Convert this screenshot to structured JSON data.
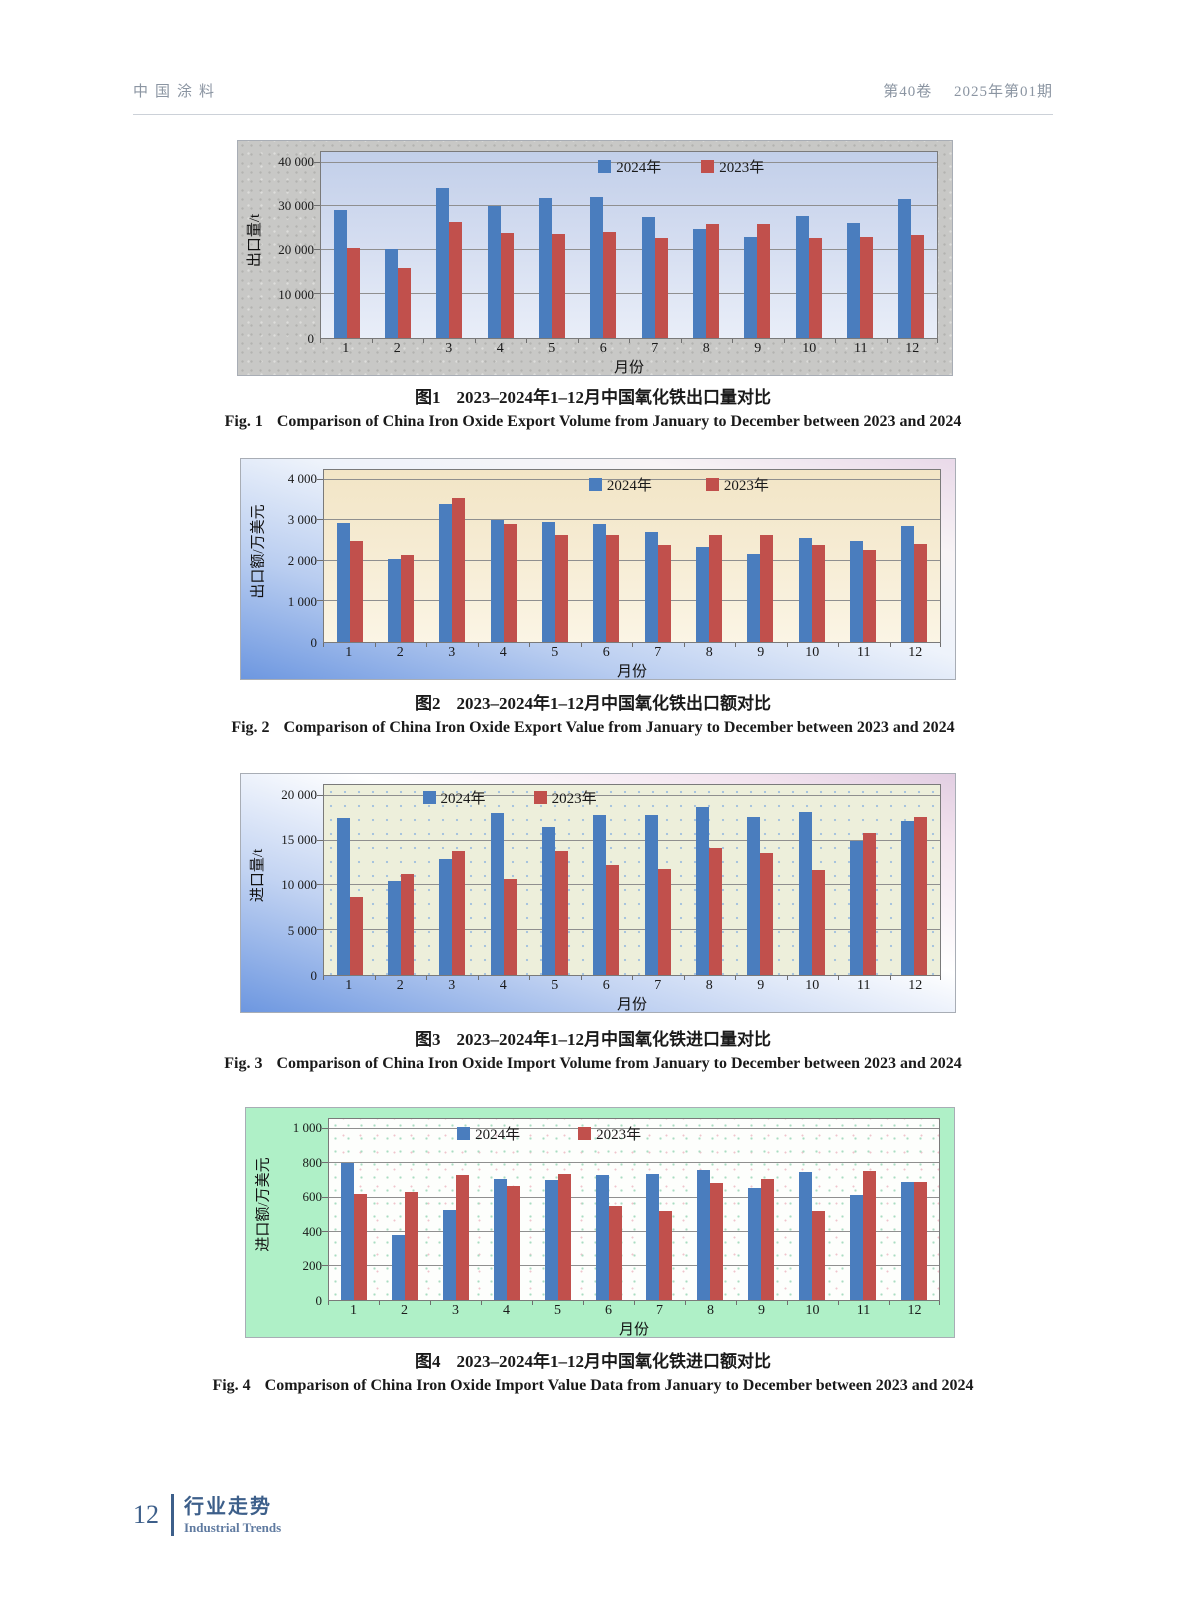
{
  "header": {
    "journal_name": "中国涂料",
    "volume": "第40卷",
    "issue": "2025年第01期"
  },
  "figures": [
    {
      "caption_cn_label": "图1",
      "caption_cn": "2023–2024年1–12月中国氧化铁出口量对比",
      "caption_en_label": "Fig. 1",
      "caption_en": "Comparison of China Iron Oxide Export Volume from January to December between 2023 and 2024"
    },
    {
      "caption_cn_label": "图2",
      "caption_cn": "2023–2024年1–12月中国氧化铁出口额对比",
      "caption_en_label": "Fig. 2",
      "caption_en": "Comparison of China Iron Oxide Export Value from January to December between 2023 and 2024"
    },
    {
      "caption_cn_label": "图3",
      "caption_cn": "2023–2024年1–12月中国氧化铁进口量对比",
      "caption_en_label": "Fig. 3",
      "caption_en": "Comparison of China Iron Oxide Import Volume from January to December between 2023 and 2024"
    },
    {
      "caption_cn_label": "图4",
      "caption_cn": "2023–2024年1–12月中国氧化铁进口额对比",
      "caption_en_label": "Fig. 4",
      "caption_en": "Comparison of China Iron Oxide Import Value Data from January to December between 2023 and 2024"
    }
  ],
  "chart_data": [
    {
      "type": "bar",
      "title": "",
      "categories": [
        1,
        2,
        3,
        4,
        5,
        6,
        7,
        8,
        9,
        10,
        11,
        12
      ],
      "series": [
        {
          "name": "2024年",
          "color": "#4a7dbe",
          "values": [
            29100,
            20200,
            34200,
            30000,
            32000,
            32200,
            27500,
            24800,
            23000,
            27800,
            26200,
            31800
          ]
        },
        {
          "name": "2023年",
          "color": "#c1504c",
          "values": [
            20500,
            16000,
            26400,
            24000,
            23800,
            24200,
            22700,
            26000,
            26000,
            22700,
            23000,
            23500
          ]
        }
      ],
      "xlabel": "月份",
      "ylabel": "出口量/t",
      "ylim": [
        0,
        40000
      ],
      "yticks": [
        {
          "v": 0,
          "label": "0"
        },
        {
          "v": 10000,
          "label": "10 000"
        },
        {
          "v": 20000,
          "label": "20 000"
        },
        {
          "v": 30000,
          "label": "30 000"
        },
        {
          "v": 40000,
          "label": "40 000"
        }
      ],
      "grid": true,
      "legend_position": "top-inside"
    },
    {
      "type": "bar",
      "title": "",
      "categories": [
        1,
        2,
        3,
        4,
        5,
        6,
        7,
        8,
        9,
        10,
        11,
        12
      ],
      "series": [
        {
          "name": "2024年",
          "color": "#4a7dbe",
          "values": [
            2940,
            2050,
            3390,
            3000,
            2960,
            2900,
            2720,
            2330,
            2180,
            2570,
            2480,
            2860
          ]
        },
        {
          "name": "2023年",
          "color": "#c1504c",
          "values": [
            2480,
            2140,
            3550,
            2910,
            2650,
            2630,
            2380,
            2640,
            2630,
            2380,
            2260,
            2420
          ]
        }
      ],
      "xlabel": "月份",
      "ylabel": "出口额/万美元",
      "ylim": [
        0,
        4000
      ],
      "yticks": [
        {
          "v": 0,
          "label": "0"
        },
        {
          "v": 1000,
          "label": "1 000"
        },
        {
          "v": 2000,
          "label": "2 000"
        },
        {
          "v": 3000,
          "label": "3 000"
        },
        {
          "v": 4000,
          "label": "4 000"
        }
      ],
      "grid": true,
      "legend_position": "top-inside"
    },
    {
      "type": "bar",
      "title": "",
      "categories": [
        1,
        2,
        3,
        4,
        5,
        6,
        7,
        8,
        9,
        10,
        11,
        12
      ],
      "series": [
        {
          "name": "2024年",
          "color": "#4a7dbe",
          "values": [
            17500,
            10500,
            13000,
            18100,
            16500,
            17800,
            17900,
            18700,
            17600,
            18200,
            14900,
            17200
          ]
        },
        {
          "name": "2023年",
          "color": "#c1504c",
          "values": [
            8700,
            11300,
            13800,
            10700,
            13800,
            12300,
            11800,
            14200,
            13600,
            11700,
            15800,
            17600
          ]
        }
      ],
      "xlabel": "月份",
      "ylabel": "进口量/t",
      "ylim": [
        0,
        20000
      ],
      "yticks": [
        {
          "v": 0,
          "label": "0"
        },
        {
          "v": 5000,
          "label": "5 000"
        },
        {
          "v": 10000,
          "label": "10 000"
        },
        {
          "v": 15000,
          "label": "15 000"
        },
        {
          "v": 20000,
          "label": "20 000"
        }
      ],
      "grid": true,
      "legend_position": "top-inside"
    },
    {
      "type": "bar",
      "title": "",
      "categories": [
        1,
        2,
        3,
        4,
        5,
        6,
        7,
        8,
        9,
        10,
        11,
        12
      ],
      "series": [
        {
          "name": "2024年",
          "color": "#4a7dbe",
          "values": [
            805,
            380,
            525,
            710,
            700,
            735,
            740,
            760,
            655,
            750,
            615,
            690
          ]
        },
        {
          "name": "2023年",
          "color": "#c1504c",
          "values": [
            620,
            630,
            735,
            668,
            740,
            550,
            520,
            688,
            710,
            520,
            758,
            690
          ]
        }
      ],
      "xlabel": "月份",
      "ylabel": "进口额/万美元",
      "ylim": [
        0,
        1000
      ],
      "yticks": [
        {
          "v": 0,
          "label": "0"
        },
        {
          "v": 200,
          "label": "200"
        },
        {
          "v": 400,
          "label": "400"
        },
        {
          "v": 600,
          "label": "600"
        },
        {
          "v": 800,
          "label": "800"
        },
        {
          "v": 1000,
          "label": "1 000"
        }
      ],
      "grid": true,
      "legend_position": "top-inside"
    }
  ],
  "footer": {
    "page_number": "12",
    "section_cn": "行业走势",
    "section_en": "Industrial Trends"
  }
}
